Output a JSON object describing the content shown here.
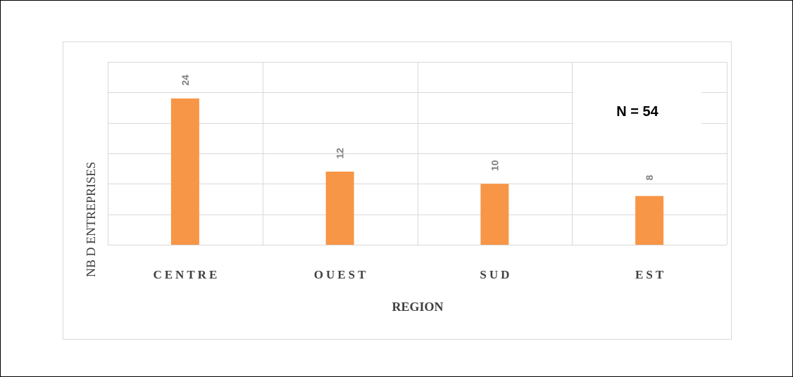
{
  "chart_data": {
    "type": "bar",
    "categories": [
      "CENTRE",
      "OUEST",
      "SUD",
      "EST"
    ],
    "values": [
      24,
      12,
      10,
      8
    ],
    "xlabel": "REGION",
    "ylabel": "NB D ENTREPRISES",
    "ylim": [
      0,
      30
    ],
    "ytick_step": 5,
    "grid": true,
    "annotation": "N = 54",
    "colors": {
      "bar": "#f79646",
      "grid": "#d9d9d9",
      "bar_label": "#7f7f7f"
    }
  }
}
